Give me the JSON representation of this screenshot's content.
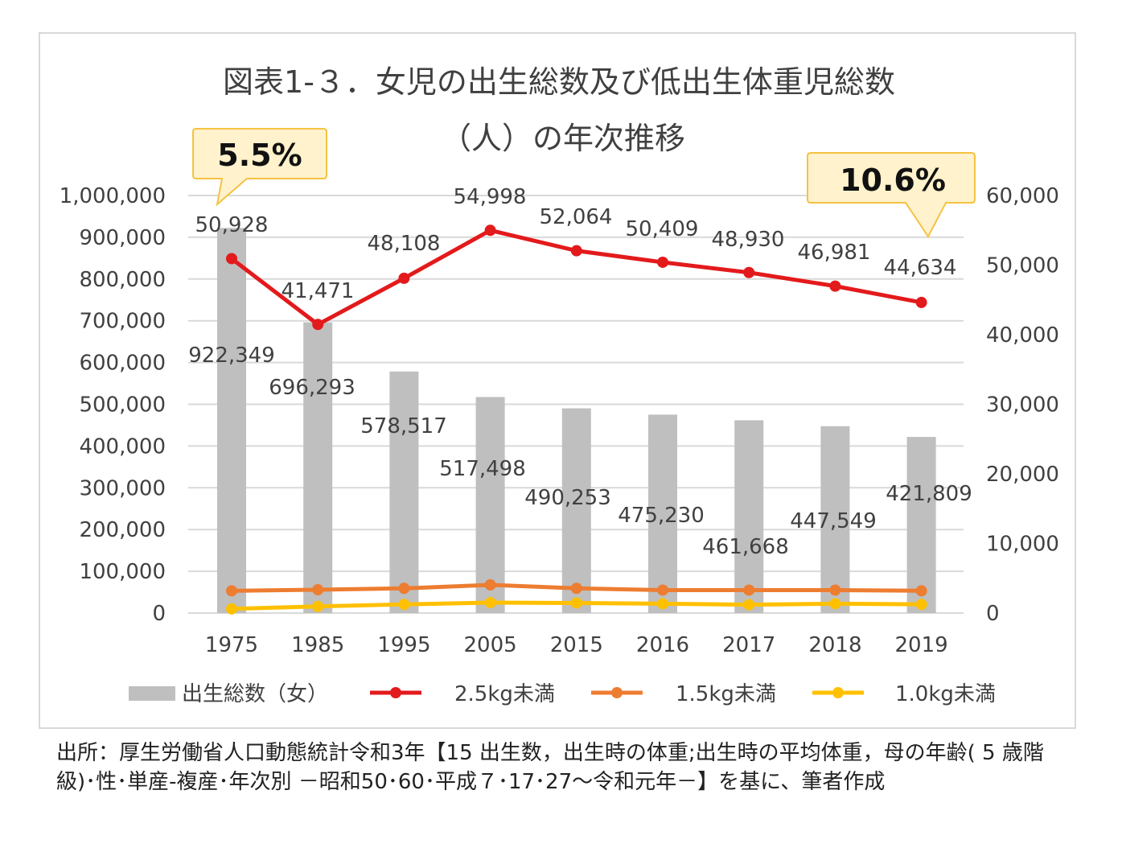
{
  "chart_data": {
    "type": "bar+line",
    "title_line1": "図表1-３．女児の出生総数及び低出生体重児総数",
    "title_line2": "（人）の年次推移",
    "categories": [
      "1975",
      "1985",
      "1995",
      "2005",
      "2015",
      "2016",
      "2017",
      "2018",
      "2019"
    ],
    "left_axis": {
      "range": [
        0,
        1000000
      ],
      "ticks": [
        "0",
        "100,000",
        "200,000",
        "300,000",
        "400,000",
        "500,000",
        "600,000",
        "700,000",
        "800,000",
        "900,000",
        "1,000,000"
      ]
    },
    "right_axis": {
      "range": [
        0,
        60000
      ],
      "ticks": [
        "0",
        "10,000",
        "20,000",
        "30,000",
        "40,000",
        "50,000",
        "60,000"
      ]
    },
    "grid": true,
    "legend_position": "bottom",
    "series": [
      {
        "name": "出生総数（女）",
        "type": "bar",
        "axis": "left",
        "color": "#bfbfbf",
        "values": [
          922349,
          696293,
          578517,
          517498,
          490253,
          475230,
          461668,
          447549,
          421809
        ],
        "labels": [
          "922,349",
          "696,293",
          "578,517",
          "517,498",
          "490,253",
          "475,230",
          "461,668",
          "447,549",
          "421,809"
        ]
      },
      {
        "name": "2.5kg未満",
        "type": "line",
        "axis": "right",
        "color": "#e31a1c",
        "values": [
          50928,
          41471,
          48108,
          54998,
          52064,
          50409,
          48930,
          46981,
          44634
        ],
        "labels": [
          "50,928",
          "41,471",
          "48,108",
          "54,998",
          "52,064",
          "50,409",
          "48,930",
          "46,981",
          "44,634"
        ]
      },
      {
        "name": "1.5kg未満",
        "type": "line",
        "axis": "right",
        "color": "#ed7d31",
        "values": [
          3200,
          3350,
          3550,
          4050,
          3550,
          3300,
          3300,
          3300,
          3200
        ]
      },
      {
        "name": "1.0kg未満",
        "type": "line",
        "axis": "right",
        "color": "#ffc000",
        "values": [
          600,
          950,
          1250,
          1500,
          1450,
          1350,
          1200,
          1350,
          1250
        ]
      }
    ],
    "callouts": [
      {
        "text": "5.5%",
        "points_to": "1975"
      },
      {
        "text": "10.6%",
        "points_to": "2019"
      }
    ]
  },
  "source_note": "出所：厚生労働省人口動態統計令和3年【15 出生数，出生時の体重;出生時の平均体重，母の年齢( 5 歳階級)･性･単産-複産･年次別 －昭和50･60･平成７･17･27～令和元年－】を基に、筆者作成"
}
